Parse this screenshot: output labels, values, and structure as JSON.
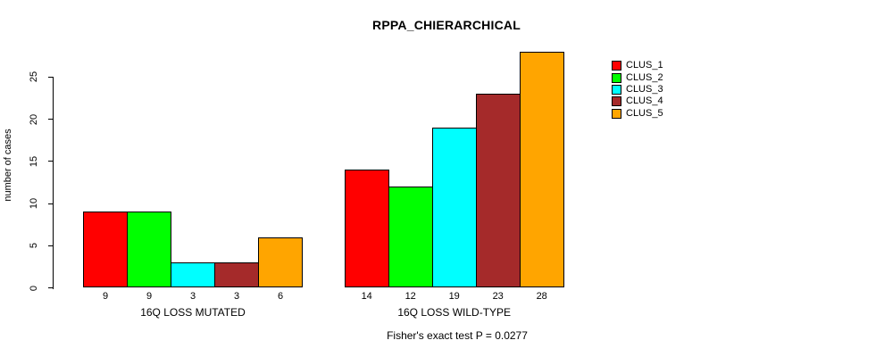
{
  "title": "RPPA_CHIERARCHICAL",
  "y_axis": {
    "label": "number of cases",
    "ticks": [
      0,
      5,
      10,
      15,
      20,
      25
    ]
  },
  "footer": "Fisher's exact test P = 0.0277",
  "legend": {
    "items": [
      {
        "label": "CLUS_1",
        "color": "#FF0000"
      },
      {
        "label": "CLUS_2",
        "color": "#00FF00"
      },
      {
        "label": "CLUS_3",
        "color": "#00FFFF"
      },
      {
        "label": "CLUS_4",
        "color": "#A52A2A"
      },
      {
        "label": "CLUS_5",
        "color": "#FFA500"
      }
    ]
  },
  "chart_data": {
    "type": "bar",
    "title": "RPPA_CHIERARCHICAL",
    "ylabel": "number of cases",
    "ylim": [
      0,
      25
    ],
    "yticks": [
      0,
      5,
      10,
      15,
      20,
      25
    ],
    "grid": false,
    "legend_position": "right",
    "series_names": [
      "CLUS_1",
      "CLUS_2",
      "CLUS_3",
      "CLUS_4",
      "CLUS_5"
    ],
    "colors": [
      "#FF0000",
      "#00FF00",
      "#00FFFF",
      "#A52A2A",
      "#FFA500"
    ],
    "groups": [
      {
        "label": "16Q LOSS MUTATED",
        "values": [
          9,
          9,
          3,
          3,
          6
        ]
      },
      {
        "label": "16Q LOSS WILD-TYPE",
        "values": [
          14,
          12,
          19,
          23,
          28
        ]
      }
    ],
    "bar_value_labels_shown": true,
    "annotation": "Fisher's exact test P = 0.0277"
  }
}
